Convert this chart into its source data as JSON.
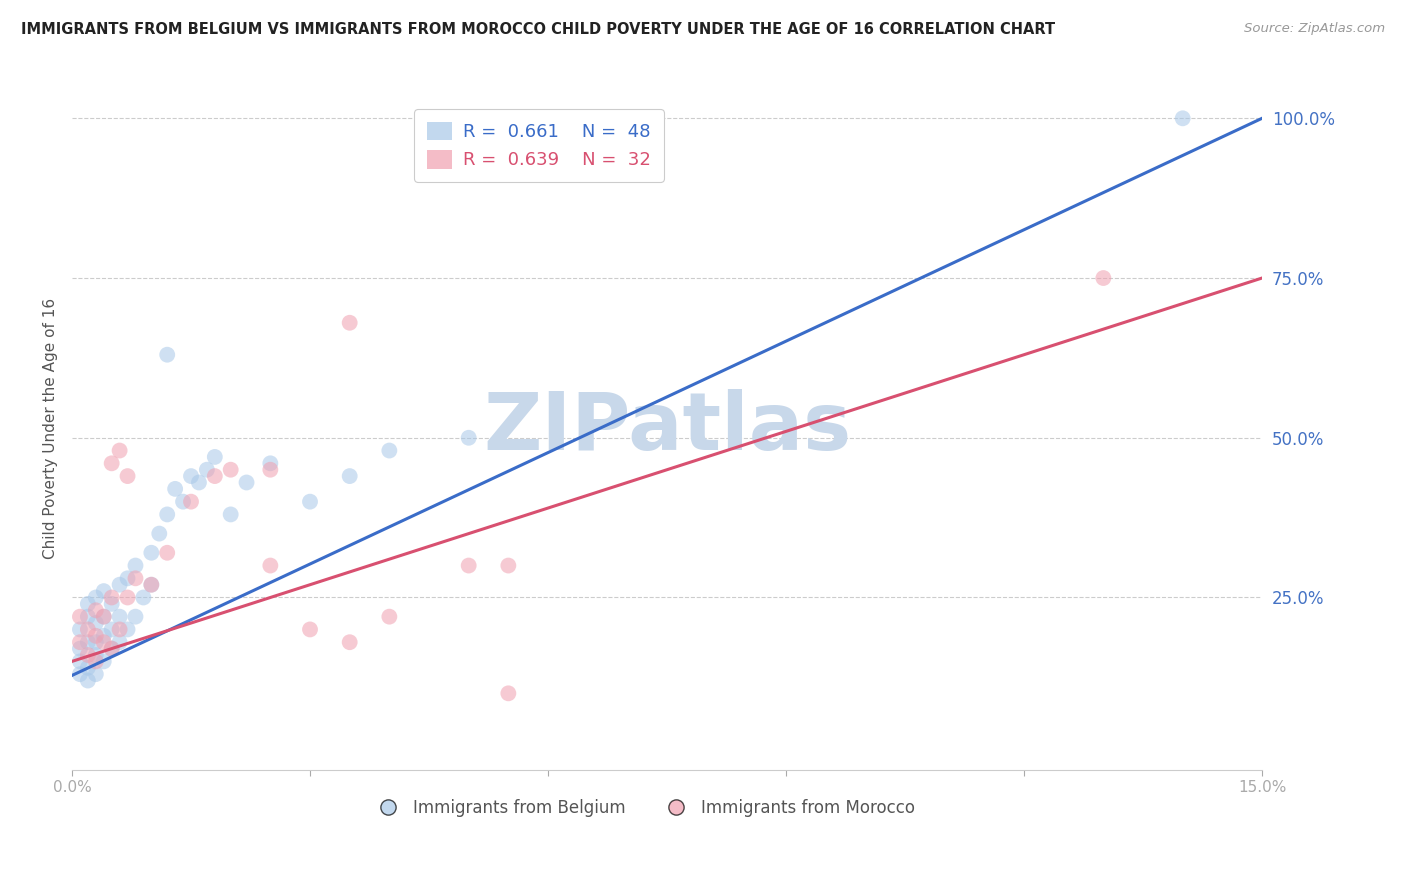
{
  "title": "IMMIGRANTS FROM BELGIUM VS IMMIGRANTS FROM MOROCCO CHILD POVERTY UNDER THE AGE OF 16 CORRELATION CHART",
  "source": "Source: ZipAtlas.com",
  "ylabel": "Child Poverty Under the Age of 16",
  "xlim": [
    0.0,
    0.15
  ],
  "ylim": [
    -0.02,
    1.05
  ],
  "xticks": [
    0.0,
    0.03,
    0.06,
    0.09,
    0.12,
    0.15
  ],
  "xtick_labels": [
    "0.0%",
    "",
    "",
    "",
    "",
    "15.0%"
  ],
  "yticks": [
    0.0,
    0.25,
    0.5,
    0.75,
    1.0
  ],
  "ytick_labels": [
    "",
    "25.0%",
    "50.0%",
    "75.0%",
    "100.0%"
  ],
  "belgium_color": "#a8c8e8",
  "morocco_color": "#f0a0b0",
  "belgium_R": 0.661,
  "belgium_N": 48,
  "morocco_R": 0.639,
  "morocco_N": 32,
  "belgium_line_color": "#3a6cc8",
  "morocco_line_color": "#d85070",
  "belgium_scatter_x": [
    0.001,
    0.001,
    0.001,
    0.001,
    0.002,
    0.002,
    0.002,
    0.002,
    0.002,
    0.003,
    0.003,
    0.003,
    0.003,
    0.003,
    0.004,
    0.004,
    0.004,
    0.004,
    0.005,
    0.005,
    0.005,
    0.006,
    0.006,
    0.006,
    0.007,
    0.007,
    0.008,
    0.008,
    0.009,
    0.01,
    0.01,
    0.011,
    0.012,
    0.013,
    0.014,
    0.015,
    0.016,
    0.017,
    0.018,
    0.02,
    0.022,
    0.025,
    0.03,
    0.035,
    0.04,
    0.05,
    0.012,
    0.14
  ],
  "belgium_scatter_y": [
    0.13,
    0.15,
    0.17,
    0.2,
    0.12,
    0.14,
    0.18,
    0.22,
    0.24,
    0.13,
    0.16,
    0.18,
    0.21,
    0.25,
    0.15,
    0.19,
    0.22,
    0.26,
    0.17,
    0.2,
    0.24,
    0.18,
    0.22,
    0.27,
    0.2,
    0.28,
    0.22,
    0.3,
    0.25,
    0.27,
    0.32,
    0.35,
    0.38,
    0.42,
    0.4,
    0.44,
    0.43,
    0.45,
    0.47,
    0.38,
    0.43,
    0.46,
    0.4,
    0.44,
    0.48,
    0.5,
    0.63,
    1.0
  ],
  "morocco_scatter_x": [
    0.001,
    0.001,
    0.002,
    0.002,
    0.003,
    0.003,
    0.003,
    0.004,
    0.004,
    0.005,
    0.005,
    0.006,
    0.007,
    0.008,
    0.01,
    0.012,
    0.015,
    0.018,
    0.02,
    0.025,
    0.025,
    0.03,
    0.035,
    0.04,
    0.05,
    0.035,
    0.005,
    0.006,
    0.007,
    0.055,
    0.13,
    0.055
  ],
  "morocco_scatter_y": [
    0.18,
    0.22,
    0.16,
    0.2,
    0.15,
    0.19,
    0.23,
    0.18,
    0.22,
    0.17,
    0.25,
    0.2,
    0.25,
    0.28,
    0.27,
    0.32,
    0.4,
    0.44,
    0.45,
    0.3,
    0.45,
    0.2,
    0.18,
    0.22,
    0.3,
    0.68,
    0.46,
    0.48,
    0.44,
    0.3,
    0.75,
    0.1
  ],
  "belgium_trend_x": [
    0.0,
    0.15
  ],
  "belgium_trend_y": [
    0.128,
    1.0
  ],
  "morocco_trend_x": [
    0.0,
    0.15
  ],
  "morocco_trend_y": [
    0.15,
    0.75
  ],
  "watermark": "ZIPatlas",
  "watermark_color": "#c8d8ea",
  "grid_color": "#cccccc",
  "ytick_color": "#4472c4",
  "legend_box_color": "#cccccc",
  "title_color": "#222222",
  "source_color": "#999999",
  "ylabel_color": "#555555",
  "xtick_color": "#aaaaaa",
  "bottom_legend_color": "#555555"
}
